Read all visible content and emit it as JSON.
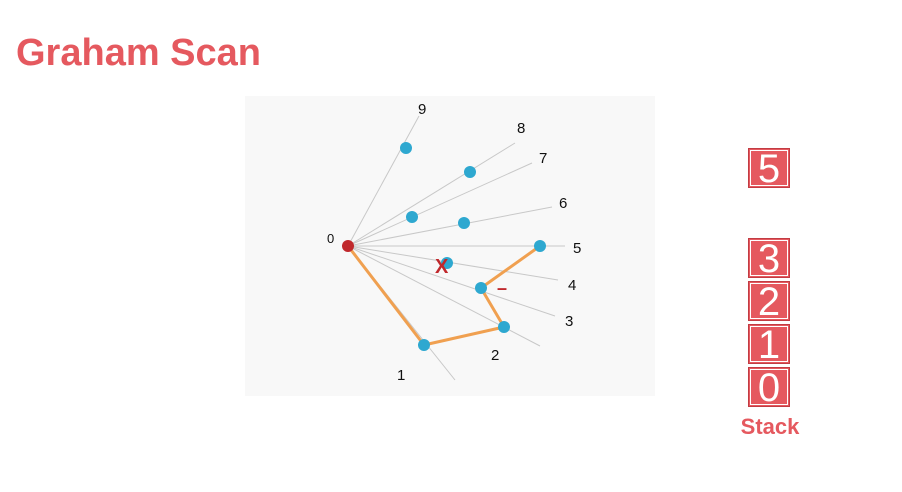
{
  "title": "Graham Scan",
  "diagram": {
    "origin_label": "0",
    "point_labels": [
      "1",
      "2",
      "3",
      "4",
      "5",
      "6",
      "7",
      "8",
      "9"
    ],
    "reject_mark": "X",
    "turn_mark": "–"
  },
  "stack": {
    "top_pending": "5",
    "items": [
      "3",
      "2",
      "1",
      "0"
    ],
    "caption": "Stack"
  },
  "colors": {
    "title": "#e5595f",
    "hull": "#f0a050",
    "point": "#2ea8d0",
    "origin": "#c0282c",
    "ray": "#c8c8c8"
  }
}
